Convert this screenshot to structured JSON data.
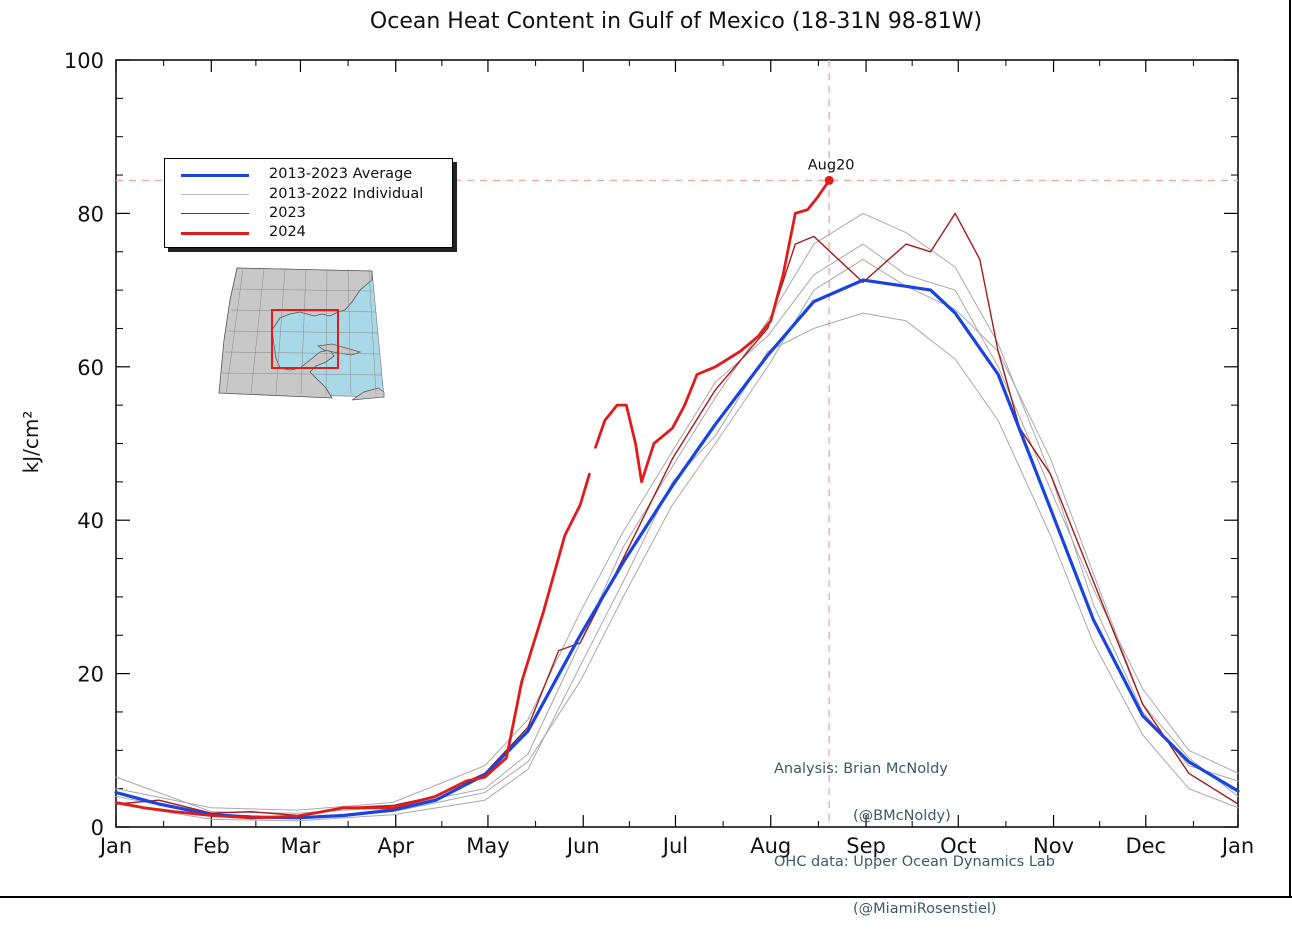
{
  "chart_data": {
    "type": "line",
    "title": "Ocean Heat Content in Gulf of Mexico (18-31N 98-81W)",
    "ylabel": "kJ/cm²",
    "xlabel": "",
    "x_tick_labels": [
      "Jan",
      "Feb",
      "Mar",
      "Apr",
      "May",
      "Jun",
      "Jul",
      "Aug",
      "Sep",
      "Oct",
      "Nov",
      "Dec",
      "Jan"
    ],
    "y_tick_labels": [
      "0",
      "20",
      "40",
      "60",
      "80",
      "100"
    ],
    "ylim": [
      0,
      100
    ],
    "xlim_day_of_year": [
      1,
      366
    ],
    "grid": false,
    "legend_position": "upper-left",
    "annotation": {
      "label": "Aug20",
      "day_of_year": 233,
      "value": 84.3
    },
    "credits": [
      "Analysis: Brian McNoldy",
      "(@BMcNoldy)",
      "OHC data: Upper Ocean Dynamics Lab",
      "(@MiamiRosenstiel)"
    ],
    "colors": {
      "average": "#1a44e0",
      "individual": "#a9a9a9",
      "y2023": "#a31b1b",
      "y2024": "#e01b1b",
      "reference_line": "#f4a3a3",
      "map_land": "#c8c8c8",
      "map_ocean": "#a9d8e6",
      "map_box": "#e01b1b"
    },
    "series": [
      {
        "name": "2013-2023 Average",
        "style": "thick-blue",
        "points": [
          [
            1,
            4.5
          ],
          [
            15,
            3.0
          ],
          [
            32,
            1.6
          ],
          [
            45,
            1.3
          ],
          [
            60,
            1.2
          ],
          [
            75,
            1.5
          ],
          [
            91,
            2.2
          ],
          [
            105,
            3.5
          ],
          [
            121,
            6.8
          ],
          [
            135,
            12.5
          ],
          [
            152,
            25.0
          ],
          [
            166,
            34.5
          ],
          [
            182,
            44.5
          ],
          [
            196,
            52.5
          ],
          [
            213,
            61.5
          ],
          [
            228,
            68.5
          ],
          [
            244,
            71.3
          ],
          [
            258,
            70.5
          ],
          [
            266,
            70.0
          ],
          [
            274,
            67.0
          ],
          [
            288,
            59.0
          ],
          [
            305,
            41.5
          ],
          [
            319,
            27.0
          ],
          [
            335,
            14.5
          ],
          [
            350,
            8.5
          ],
          [
            366,
            4.7
          ]
        ]
      },
      {
        "name": "2013-2022 Individual",
        "style": "thin-gray",
        "points": [
          [
            1,
            6.5
          ],
          [
            32,
            2.0
          ],
          [
            60,
            1.8
          ],
          [
            91,
            2.6
          ],
          [
            121,
            5.0
          ],
          [
            135,
            9.5
          ],
          [
            152,
            24.0
          ],
          [
            166,
            36.5
          ],
          [
            182,
            47.0
          ],
          [
            196,
            56.0
          ],
          [
            213,
            66.0
          ],
          [
            228,
            76.0
          ],
          [
            244,
            80.0
          ],
          [
            258,
            77.5
          ],
          [
            274,
            73.0
          ],
          [
            288,
            63.0
          ],
          [
            305,
            46.0
          ],
          [
            319,
            29.0
          ],
          [
            335,
            15.0
          ],
          [
            350,
            8.0
          ],
          [
            366,
            6.0
          ]
        ]
      },
      {
        "name": "2013-2022 Individual",
        "style": "thin-gray",
        "points": [
          [
            1,
            3.0
          ],
          [
            32,
            1.0
          ],
          [
            60,
            0.8
          ],
          [
            91,
            1.6
          ],
          [
            121,
            3.5
          ],
          [
            135,
            7.5
          ],
          [
            152,
            21.0
          ],
          [
            166,
            32.0
          ],
          [
            182,
            45.0
          ],
          [
            196,
            51.0
          ],
          [
            213,
            62.0
          ],
          [
            228,
            65.0
          ],
          [
            244,
            67.0
          ],
          [
            258,
            66.0
          ],
          [
            274,
            61.0
          ],
          [
            288,
            53.0
          ],
          [
            305,
            38.0
          ],
          [
            319,
            24.0
          ],
          [
            335,
            12.0
          ],
          [
            350,
            5.0
          ],
          [
            366,
            2.5
          ]
        ]
      },
      {
        "name": "2013-2022 Individual",
        "style": "thin-gray",
        "points": [
          [
            1,
            5.0
          ],
          [
            32,
            2.5
          ],
          [
            60,
            2.2
          ],
          [
            91,
            3.2
          ],
          [
            121,
            8.0
          ],
          [
            135,
            14.0
          ],
          [
            152,
            28.0
          ],
          [
            166,
            38.5
          ],
          [
            182,
            49.0
          ],
          [
            196,
            58.0
          ],
          [
            213,
            64.0
          ],
          [
            228,
            72.0
          ],
          [
            244,
            76.0
          ],
          [
            258,
            72.0
          ],
          [
            274,
            70.0
          ],
          [
            288,
            60.0
          ],
          [
            305,
            44.0
          ],
          [
            319,
            31.0
          ],
          [
            335,
            18.0
          ],
          [
            350,
            10.0
          ],
          [
            366,
            7.0
          ]
        ]
      },
      {
        "name": "2013-2022 Individual",
        "style": "thin-gray",
        "points": [
          [
            1,
            4.0
          ],
          [
            32,
            1.5
          ],
          [
            60,
            1.2
          ],
          [
            91,
            2.0
          ],
          [
            121,
            4.5
          ],
          [
            135,
            8.5
          ],
          [
            152,
            19.0
          ],
          [
            166,
            30.0
          ],
          [
            182,
            42.0
          ],
          [
            196,
            50.0
          ],
          [
            213,
            60.0
          ],
          [
            228,
            70.0
          ],
          [
            244,
            74.0
          ],
          [
            258,
            70.5
          ],
          [
            274,
            67.5
          ],
          [
            288,
            62.0
          ],
          [
            305,
            48.0
          ],
          [
            319,
            33.0
          ],
          [
            335,
            16.0
          ],
          [
            350,
            9.0
          ],
          [
            366,
            4.0
          ]
        ]
      },
      {
        "name": "2023",
        "style": "thin-darkred",
        "points": [
          [
            1,
            3.0
          ],
          [
            15,
            3.5
          ],
          [
            32,
            1.8
          ],
          [
            45,
            2.0
          ],
          [
            60,
            1.5
          ],
          [
            75,
            2.5
          ],
          [
            91,
            2.8
          ],
          [
            105,
            4.0
          ],
          [
            121,
            7.0
          ],
          [
            135,
            13.0
          ],
          [
            145,
            23.0
          ],
          [
            152,
            24.0
          ],
          [
            166,
            35.0
          ],
          [
            182,
            48.0
          ],
          [
            196,
            57.0
          ],
          [
            213,
            65.0
          ],
          [
            222,
            76.0
          ],
          [
            228,
            77.0
          ],
          [
            244,
            71.0
          ],
          [
            258,
            76.0
          ],
          [
            266,
            75.0
          ],
          [
            274,
            80.0
          ],
          [
            282,
            74.0
          ],
          [
            288,
            62.0
          ],
          [
            295,
            52.0
          ],
          [
            305,
            46.0
          ],
          [
            319,
            32.0
          ],
          [
            335,
            16.0
          ],
          [
            350,
            7.0
          ],
          [
            366,
            3.0
          ]
        ]
      },
      {
        "name": "2024",
        "style": "thick-red",
        "points": [
          [
            1,
            3.2
          ],
          [
            10,
            2.5
          ],
          [
            20,
            2.0
          ],
          [
            32,
            1.5
          ],
          [
            45,
            1.2
          ],
          [
            60,
            1.4
          ],
          [
            75,
            2.5
          ],
          [
            91,
            2.5
          ],
          [
            105,
            4.0
          ],
          [
            115,
            6.0
          ],
          [
            121,
            6.5
          ],
          [
            128,
            9.0
          ],
          [
            133,
            19.0
          ],
          [
            140,
            28.0
          ],
          [
            147,
            38.0
          ],
          [
            152,
            42.0
          ],
          [
            155,
            46.0
          ]
        ]
      },
      {
        "name": "2024",
        "style": "thick-red",
        "points": [
          [
            157,
            49.5
          ],
          [
            160,
            53.0
          ],
          [
            164,
            55.0
          ],
          [
            167,
            55.0
          ],
          [
            170,
            50.0
          ],
          [
            172,
            45.0
          ],
          [
            176,
            50.0
          ],
          [
            182,
            52.0
          ],
          [
            186,
            55.0
          ],
          [
            190,
            59.0
          ],
          [
            196,
            60.0
          ],
          [
            204,
            62.0
          ],
          [
            210,
            64.0
          ],
          [
            214,
            66.0
          ],
          [
            218,
            72.0
          ],
          [
            222,
            80.0
          ],
          [
            226,
            80.5
          ],
          [
            229,
            82.0
          ],
          [
            233,
            84.3
          ]
        ]
      }
    ]
  },
  "legend": [
    {
      "label": "2013-2023 Average",
      "style": "thick-blue"
    },
    {
      "label": "2013-2022 Individual",
      "style": "thin-gray"
    },
    {
      "label": "2023",
      "style": "thin-darkred"
    },
    {
      "label": "2024",
      "style": "thick-red"
    }
  ]
}
